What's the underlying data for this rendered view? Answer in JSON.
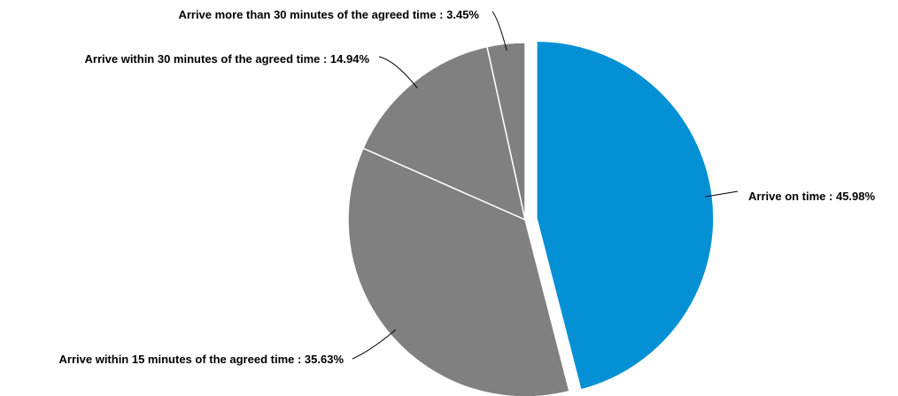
{
  "chart_data": {
    "type": "pie",
    "title": "",
    "start_angle_deg": 0,
    "direction": "clockwise",
    "slices": [
      {
        "label": "Arrive on time",
        "value": 45.98,
        "display": "Arrive on time : 45.98%",
        "color": "#0390D4",
        "exploded": true
      },
      {
        "label": "Arrive within 15 minutes of the agreed time",
        "value": 35.63,
        "display": "Arrive within 15 minutes of the agreed time : 35.63%",
        "color": "#808080",
        "exploded": false
      },
      {
        "label": "Arrive within 30 minutes of the agreed time",
        "value": 14.94,
        "display": "Arrive within 30 minutes of the agreed time : 14.94%",
        "color": "#808080",
        "exploded": false
      },
      {
        "label": "Arrive more than 30 minutes of the agreed time",
        "value": 3.45,
        "display": "Arrive more than 30 minutes of the agreed time : 3.45%",
        "color": "#808080",
        "exploded": false
      }
    ]
  }
}
